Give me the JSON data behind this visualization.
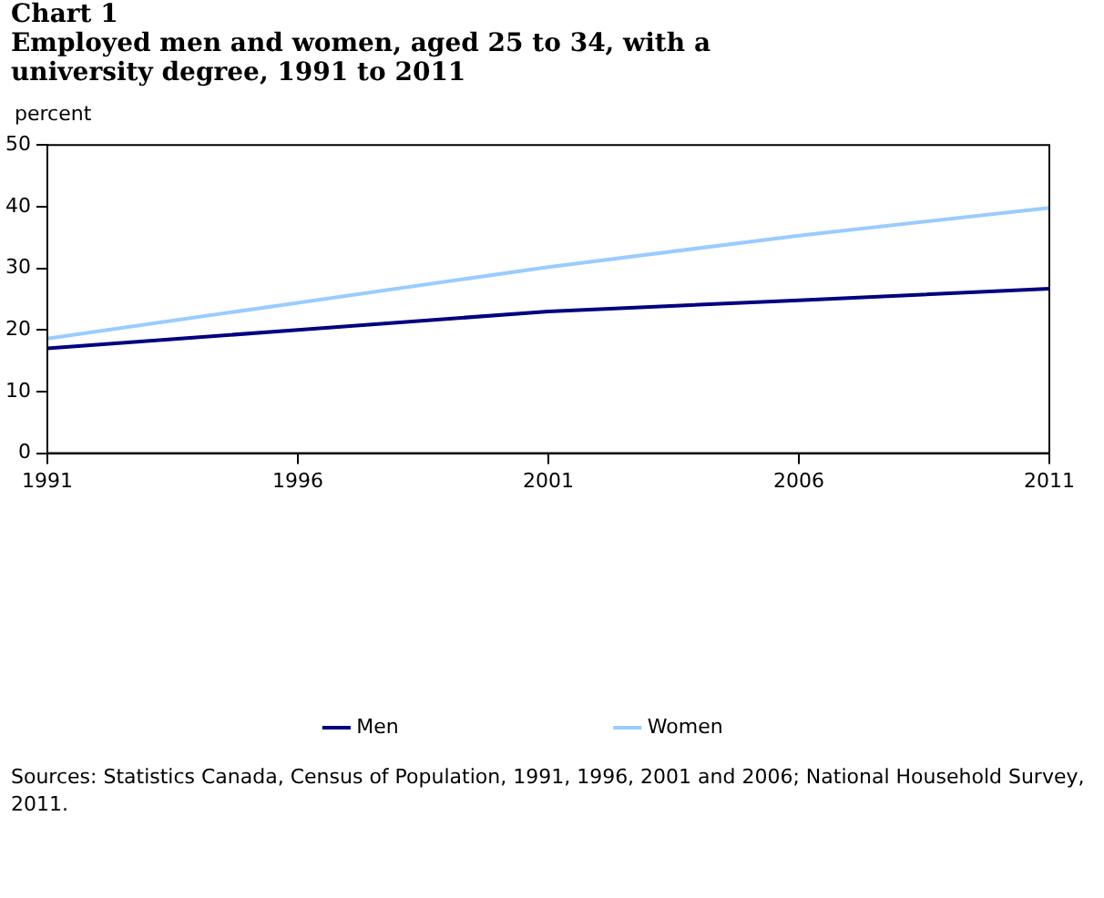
{
  "chart_data": {
    "type": "line",
    "title": "Chart 1",
    "subtitle": "Employed men and women, aged 25 to 34, with a university degree, 1991 to 2011",
    "ylabel": "percent",
    "x": [
      1991,
      1996,
      2001,
      2006,
      2011
    ],
    "series": [
      {
        "name": "Men",
        "color": "#000080",
        "values": [
          17.0,
          20.0,
          23.0,
          24.8,
          26.7
        ]
      },
      {
        "name": "Women",
        "color": "#99ccff",
        "values": [
          18.6,
          24.4,
          30.2,
          35.3,
          39.8
        ]
      }
    ],
    "xlim": [
      1991,
      2011
    ],
    "xticks": [
      1991,
      1996,
      2001,
      2006,
      2011
    ],
    "ylim": [
      0,
      50
    ],
    "yticks": [
      0,
      10,
      20,
      30,
      40,
      50
    ],
    "grid": false,
    "legend": "bottom",
    "marker": "none",
    "line_style": "solid",
    "annotations": [
      "Sources: Statistics Canada, Census of Population, 1991, 1996, 2001 and 2006; National Household Survey, 2011."
    ]
  }
}
